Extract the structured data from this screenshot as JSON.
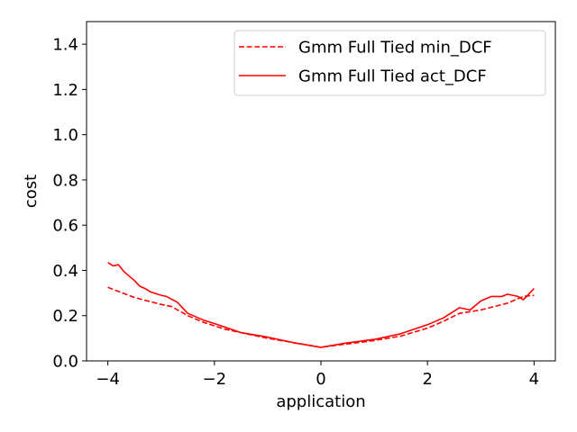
{
  "chart_data": {
    "type": "line",
    "title": "",
    "xlabel": "application",
    "ylabel": "cost",
    "xlim": [
      -4.4,
      4.4
    ],
    "ylim": [
      0.0,
      1.5
    ],
    "xticks": [
      -4,
      -2,
      0,
      2,
      4
    ],
    "xtick_labels": [
      "−4",
      "−2",
      "0",
      "2",
      "4"
    ],
    "yticks": [
      0.0,
      0.2,
      0.4,
      0.6,
      0.8,
      1.0,
      1.2,
      1.4
    ],
    "ytick_labels": [
      "0.0",
      "0.2",
      "0.4",
      "0.6",
      "0.8",
      "1.0",
      "1.2",
      "1.4"
    ],
    "grid": false,
    "legend_position": "top-right",
    "series": [
      {
        "name": "Gmm Full Tied min_DCF",
        "color": "#ff0000",
        "style": "dashed",
        "x": [
          -4.0,
          -3.5,
          -3.0,
          -2.8,
          -2.5,
          -2.2,
          -2.0,
          -1.8,
          -1.5,
          -1.0,
          -0.5,
          0.0,
          0.5,
          1.0,
          1.5,
          2.0,
          2.3,
          2.6,
          3.0,
          3.5,
          3.8,
          4.0
        ],
        "y": [
          0.325,
          0.28,
          0.25,
          0.24,
          0.2,
          0.17,
          0.155,
          0.14,
          0.125,
          0.1,
          0.08,
          0.06,
          0.075,
          0.09,
          0.11,
          0.145,
          0.175,
          0.21,
          0.225,
          0.255,
          0.285,
          0.29
        ]
      },
      {
        "name": "Gmm Full Tied act_DCF",
        "color": "#ff0000",
        "style": "solid",
        "x": [
          -4.0,
          -3.9,
          -3.8,
          -3.7,
          -3.5,
          -3.4,
          -3.3,
          -3.2,
          -3.0,
          -2.9,
          -2.7,
          -2.5,
          -2.2,
          -2.0,
          -1.5,
          -1.0,
          -0.5,
          0.0,
          0.5,
          1.0,
          1.5,
          2.0,
          2.3,
          2.6,
          2.8,
          3.0,
          3.2,
          3.4,
          3.5,
          3.7,
          3.8,
          4.0
        ],
        "y": [
          0.435,
          0.42,
          0.425,
          0.395,
          0.355,
          0.33,
          0.32,
          0.305,
          0.29,
          0.285,
          0.26,
          0.21,
          0.18,
          0.165,
          0.125,
          0.105,
          0.08,
          0.06,
          0.08,
          0.095,
          0.12,
          0.16,
          0.19,
          0.235,
          0.225,
          0.265,
          0.285,
          0.285,
          0.295,
          0.285,
          0.27,
          0.32
        ]
      }
    ]
  }
}
